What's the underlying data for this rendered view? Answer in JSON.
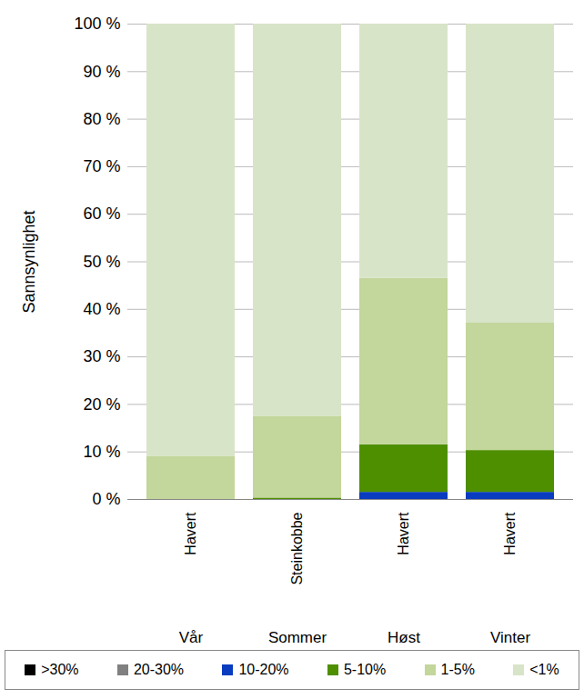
{
  "chart_data": {
    "type": "bar",
    "y_label": "Sannsynlighet",
    "categories": [
      "Vår",
      "Sommer",
      "Høst",
      "Vinter"
    ],
    "species": [
      "Havert",
      "Steinkobbe",
      "Havert",
      "Havert"
    ],
    "stacked": true,
    "grid": true,
    "legend": "bottom",
    "ylim": [
      0,
      100
    ],
    "yticks": [
      {
        "value": 0,
        "label": "0 %"
      },
      {
        "value": 10,
        "label": "10 %"
      },
      {
        "value": 20,
        "label": "20 %"
      },
      {
        "value": 30,
        "label": "30 %"
      },
      {
        "value": 40,
        "label": "40 %"
      },
      {
        "value": 50,
        "label": "50 %"
      },
      {
        "value": 60,
        "label": "60 %"
      },
      {
        "value": 70,
        "label": "70 %"
      },
      {
        "value": 80,
        "label": "80 %"
      },
      {
        "value": 90,
        "label": "90 %"
      },
      {
        "value": 100,
        "label": "100 %"
      }
    ],
    "series": [
      {
        "name": ">30%",
        "color": "#000000",
        "values": [
          0,
          0,
          0,
          0
        ]
      },
      {
        "name": "20-30%",
        "color": "#808080",
        "values": [
          0,
          0,
          0,
          0
        ]
      },
      {
        "name": "10-20%",
        "color": "#0a3cc0",
        "values": [
          0,
          0,
          1.5,
          1.5
        ]
      },
      {
        "name": "5-10%",
        "color": "#4e8f00",
        "values": [
          0,
          0.3,
          10,
          8.8
        ]
      },
      {
        "name": "1-5%",
        "color": "#c3d69b",
        "values": [
          9,
          17.2,
          35,
          26.8
        ]
      },
      {
        "name": "<1%",
        "color": "#d8e4c8",
        "values": [
          91,
          82.5,
          53.5,
          62.9
        ]
      }
    ]
  }
}
